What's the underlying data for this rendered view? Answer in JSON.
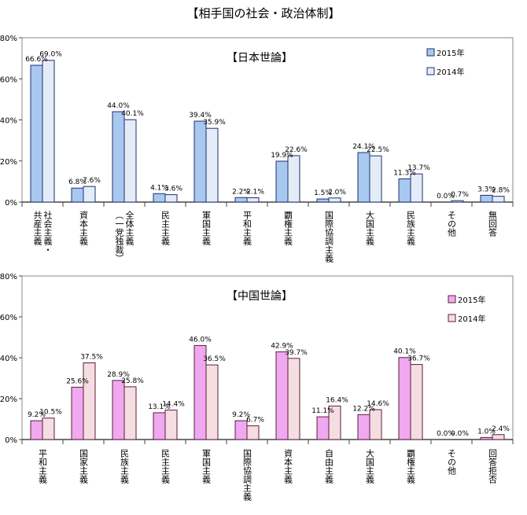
{
  "title": "【相手国の社会・政治体制】",
  "chart_data": [
    {
      "type": "bar",
      "title": "【日本世論】",
      "categories": [
        "社会主義・共産主義",
        "資本主義",
        "全体主義（一党独裁）",
        "民主主義",
        "軍国主義",
        "平和主義",
        "覇権主義",
        "国際協調主義",
        "大国主義",
        "民族主義",
        "その他",
        "無回答"
      ],
      "category_columns": [
        [
          "社会主義・",
          "共産主義"
        ],
        [
          "資本主義"
        ],
        [
          "全体主義",
          "（一党独裁）"
        ],
        [
          "民主主義"
        ],
        [
          "軍国主義"
        ],
        [
          "平和主義"
        ],
        [
          "覇権主義"
        ],
        [
          "国際協調主義"
        ],
        [
          "大国主義"
        ],
        [
          "民族主義"
        ],
        [
          "その他"
        ],
        [
          "無回答"
        ]
      ],
      "series": [
        {
          "name": "2015年",
          "values": [
            66.6,
            6.8,
            44.0,
            4.1,
            39.4,
            2.2,
            19.9,
            1.5,
            24.1,
            11.3,
            0.0,
            3.3
          ],
          "labels": [
            "66.6%",
            "6.8%",
            "44.0%",
            "4.1%",
            "39.4%",
            "2.2%",
            "19.9%",
            "1.5%",
            "24.1%",
            "11.3%",
            "0.0%",
            "3.3%"
          ]
        },
        {
          "name": "2014年",
          "values": [
            69.0,
            7.6,
            40.1,
            3.6,
            35.9,
            2.1,
            22.6,
            2.0,
            22.5,
            13.7,
            0.7,
            2.8
          ],
          "labels": [
            "69.0%",
            "7.6%",
            "40.1%",
            "3.6%",
            "35.9%",
            "2.1%",
            "22.6%",
            "2.0%",
            "22.5%",
            "13.7%",
            "0.7%",
            "2.8%"
          ]
        }
      ],
      "ylim": [
        0,
        80
      ],
      "yticks": [
        0,
        20,
        40,
        60,
        80
      ],
      "ytick_labels": [
        "0%",
        "20%",
        "40%",
        "60%",
        "80%"
      ],
      "legend_position": "top-right",
      "colors": {
        "2015年": "#a8c8f0",
        "2014年": "#e4ecf8",
        "edge": "#1f2f6e"
      }
    },
    {
      "type": "bar",
      "title": "【中国世論】",
      "categories": [
        "平和主義",
        "国家主義",
        "民族主義",
        "民主主義",
        "軍国主義",
        "国際協調主義",
        "資本主義",
        "自由主義",
        "大国主義",
        "覇権主義",
        "その他",
        "回答拒否"
      ],
      "category_columns": [
        [
          "平和主義"
        ],
        [
          "国家主義"
        ],
        [
          "民族主義"
        ],
        [
          "民主主義"
        ],
        [
          "軍国主義"
        ],
        [
          "国際協調主義"
        ],
        [
          "資本主義"
        ],
        [
          "自由主義"
        ],
        [
          "大国主義"
        ],
        [
          "覇権主義"
        ],
        [
          "その他"
        ],
        [
          "回答拒否"
        ]
      ],
      "series": [
        {
          "name": "2015年",
          "values": [
            9.2,
            25.6,
            28.9,
            13.1,
            46.0,
            9.2,
            42.9,
            11.1,
            12.2,
            40.1,
            0.0,
            1.0
          ],
          "labels": [
            "9.2%",
            "25.6%",
            "28.9%",
            "13.1%",
            "46.0%",
            "9.2%",
            "42.9%",
            "11.1%",
            "12.2%",
            "40.1%",
            "0.0%",
            "1.0%"
          ]
        },
        {
          "name": "2014年",
          "values": [
            10.5,
            37.5,
            25.8,
            14.4,
            36.5,
            6.7,
            39.7,
            16.4,
            14.6,
            36.7,
            0.0,
            2.4
          ],
          "labels": [
            "10.5%",
            "37.5%",
            "25.8%",
            "14.4%",
            "36.5%",
            "6.7%",
            "39.7%",
            "16.4%",
            "14.6%",
            "36.7%",
            "0.0%",
            "2.4%"
          ]
        }
      ],
      "ylim": [
        0,
        80
      ],
      "yticks": [
        0,
        20,
        40,
        60,
        80
      ],
      "ytick_labels": [
        "0%",
        "20%",
        "40%",
        "60%",
        "80%"
      ],
      "legend_position": "top-right",
      "colors": {
        "2015年": "#f0a8f0",
        "2014年": "#f5dde2",
        "edge": "#5a1f3a"
      }
    }
  ]
}
